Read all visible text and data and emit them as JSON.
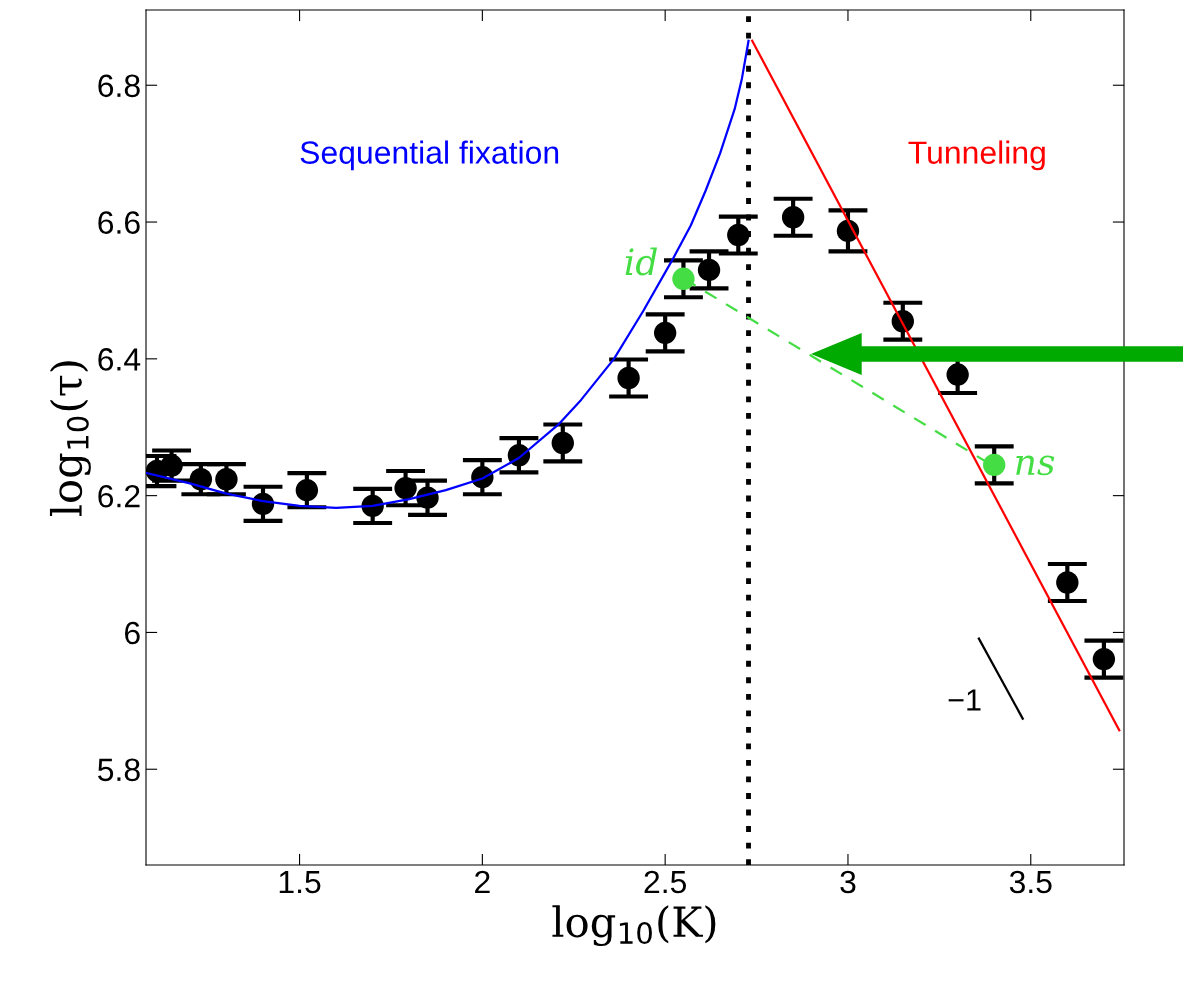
{
  "chart_data": {
    "type": "scatter",
    "xlabel": "log$_{10}$(K)",
    "ylabel": "log$_{10}$(τ)",
    "xlim": [
      1.08,
      3.755
    ],
    "ylim": [
      5.66,
      6.91
    ],
    "xticks": [
      1.5,
      2,
      2.5,
      3,
      3.5
    ],
    "yticks": [
      5.8,
      6,
      6.2,
      6.4,
      6.6,
      6.8
    ],
    "grid": false,
    "legend": false,
    "series": [
      {
        "type": "line",
        "name": "Sequential fixation",
        "color": "#0000ff",
        "line_style": "solid",
        "marker": "none",
        "x": [
          1.082,
          1.2,
          1.3,
          1.4,
          1.5,
          1.6,
          1.7,
          1.8,
          1.9,
          2.0,
          2.1,
          2.21,
          2.27,
          2.36,
          2.44,
          2.52,
          2.57,
          2.61,
          2.65,
          2.69,
          2.71,
          2.728
        ],
        "values": [
          6.233,
          6.218,
          6.203,
          6.192,
          6.185,
          6.182,
          6.185,
          6.195,
          6.208,
          6.225,
          6.255,
          6.305,
          6.34,
          6.4,
          6.47,
          6.545,
          6.595,
          6.645,
          6.7,
          6.765,
          6.81,
          6.865
        ]
      },
      {
        "type": "line",
        "name": "Tunneling",
        "color": "#ff0000",
        "line_style": "solid",
        "marker": "none",
        "x": [
          2.738,
          3.742
        ],
        "values": [
          6.865,
          5.857
        ]
      },
      {
        "type": "line",
        "color": "#44dd44",
        "line_style": "dashed",
        "marker": "none",
        "x": [
          2.552,
          3.392
        ],
        "values": [
          6.517,
          6.245
        ]
      },
      {
        "type": "line",
        "color": "#000000",
        "line_style": "solid",
        "marker": "none",
        "x": [
          3.358,
          3.478
        ],
        "values": [
          5.991,
          5.874
        ]
      },
      {
        "color": "#000000",
        "marker": "circle",
        "x": [
          1.11,
          1.15,
          1.23,
          1.3,
          1.4,
          1.52,
          1.7,
          1.79,
          1.85,
          2.0,
          2.1,
          2.22,
          2.4,
          2.5,
          2.55,
          2.62,
          2.7,
          2.85,
          3.0,
          3.15,
          3.3,
          3.4,
          3.6,
          3.7
        ],
        "values": [
          6.236,
          6.244,
          6.224,
          6.224,
          6.188,
          6.208,
          6.185,
          6.211,
          6.197,
          6.227,
          6.259,
          6.277,
          6.372,
          6.438,
          6.517,
          6.53,
          6.581,
          6.607,
          6.587,
          6.455,
          6.377,
          6.245,
          6.073,
          5.961
        ],
        "colors": [
          "#000000",
          "#000000",
          "#000000",
          "#000000",
          "#000000",
          "#000000",
          "#000000",
          "#000000",
          "#000000",
          "#000000",
          "#000000",
          "#000000",
          "#000000",
          "#000000",
          "#44dd44",
          "#000000",
          "#000000",
          "#000000",
          "#000000",
          "#000000",
          "#000000",
          "#44dd44",
          "#000000",
          "#000000"
        ],
        "errors": [
          0.022,
          0.022,
          0.022,
          0.022,
          0.025,
          0.025,
          0.025,
          0.025,
          0.025,
          0.025,
          0.025,
          0.027,
          0.027,
          0.027,
          0.027,
          0.027,
          0.027,
          0.027,
          0.03,
          0.027,
          0.027,
          0.027,
          0.027,
          0.027
        ],
        "value_labels": [
          null,
          null,
          null,
          null,
          null,
          null,
          null,
          null,
          null,
          null,
          null,
          null,
          null,
          null,
          "id",
          null,
          null,
          null,
          null,
          null,
          null,
          "ns",
          null,
          null
        ]
      }
    ],
    "ref_lines": [
      {
        "axis": "x",
        "value": 2.728,
        "color": "#000000",
        "line_style": "dotted"
      }
    ],
    "annotations": [
      "−1"
    ]
  }
}
